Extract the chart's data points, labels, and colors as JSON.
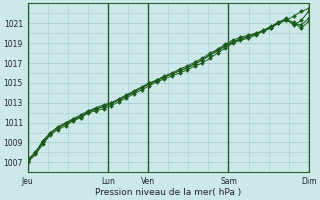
{
  "title": "",
  "xlabel": "Pression niveau de la mer( hPa )",
  "ylabel": "",
  "bg_color": "#cce8e8",
  "grid_color": "#aacece",
  "line_color": "#1a5c1a",
  "marker_color": "#1a5c1a",
  "ylim": [
    1006.0,
    1023.0
  ],
  "yticks": [
    1007,
    1009,
    1011,
    1013,
    1015,
    1017,
    1019,
    1021
  ],
  "xtick_labels": [
    "Jeu",
    "",
    "Lun",
    "Ven",
    "",
    "Sam",
    "",
    "Dim"
  ],
  "xtick_positions": [
    0,
    1,
    2,
    3,
    4,
    5,
    6,
    7
  ],
  "vlines": [
    0,
    2,
    3,
    5,
    7
  ],
  "vline_labels": [
    "Jeu",
    "Lun",
    "Ven",
    "Sam",
    "Dim"
  ],
  "total_days": 7,
  "series": [
    [
      1007.0,
      1007.8,
      1008.8,
      1009.8,
      1010.3,
      1010.7,
      1011.2,
      1011.5,
      1012.0,
      1012.2,
      1012.4,
      1012.7,
      1013.1,
      1013.5,
      1013.9,
      1014.3,
      1014.7,
      1015.1,
      1015.4,
      1015.7,
      1016.0,
      1016.3,
      1016.7,
      1017.0,
      1017.5,
      1018.0,
      1018.5,
      1019.0,
      1019.3,
      1019.5,
      1019.8,
      1020.2,
      1020.5,
      1021.0,
      1021.3,
      1021.7,
      1022.2,
      1022.5
    ],
    [
      1007.3,
      1008.0,
      1009.2,
      1010.0,
      1010.6,
      1011.0,
      1011.4,
      1011.8,
      1012.2,
      1012.5,
      1012.8,
      1013.0,
      1013.4,
      1013.8,
      1014.2,
      1014.6,
      1015.0,
      1015.3,
      1015.7,
      1016.0,
      1016.4,
      1016.7,
      1017.1,
      1017.5,
      1018.0,
      1018.4,
      1018.9,
      1019.3,
      1019.6,
      1019.8,
      1020.0,
      1020.3,
      1020.7,
      1021.1,
      1021.5,
      1020.8,
      1021.3,
      1022.2
    ],
    [
      1007.1,
      1007.9,
      1009.0,
      1009.9,
      1010.5,
      1010.9,
      1011.3,
      1011.6,
      1012.1,
      1012.4,
      1012.6,
      1012.9,
      1013.3,
      1013.7,
      1014.1,
      1014.5,
      1014.9,
      1015.2,
      1015.6,
      1015.9,
      1016.2,
      1016.5,
      1016.9,
      1017.3,
      1017.8,
      1018.2,
      1018.7,
      1019.1,
      1019.4,
      1019.7,
      1019.9,
      1020.25,
      1020.55,
      1021.05,
      1021.4,
      1021.1,
      1020.5,
      1021.2
    ],
    [
      1007.2,
      1007.9,
      1009.1,
      1009.9,
      1010.5,
      1010.85,
      1011.3,
      1011.65,
      1012.1,
      1012.35,
      1012.65,
      1012.95,
      1013.3,
      1013.65,
      1014.05,
      1014.5,
      1014.95,
      1015.25,
      1015.6,
      1015.9,
      1016.25,
      1016.55,
      1016.95,
      1017.35,
      1017.85,
      1018.3,
      1018.75,
      1019.15,
      1019.45,
      1019.65,
      1019.95,
      1020.25,
      1020.6,
      1021.05,
      1021.35,
      1020.95,
      1020.85,
      1021.5
    ]
  ],
  "n_points": 38
}
